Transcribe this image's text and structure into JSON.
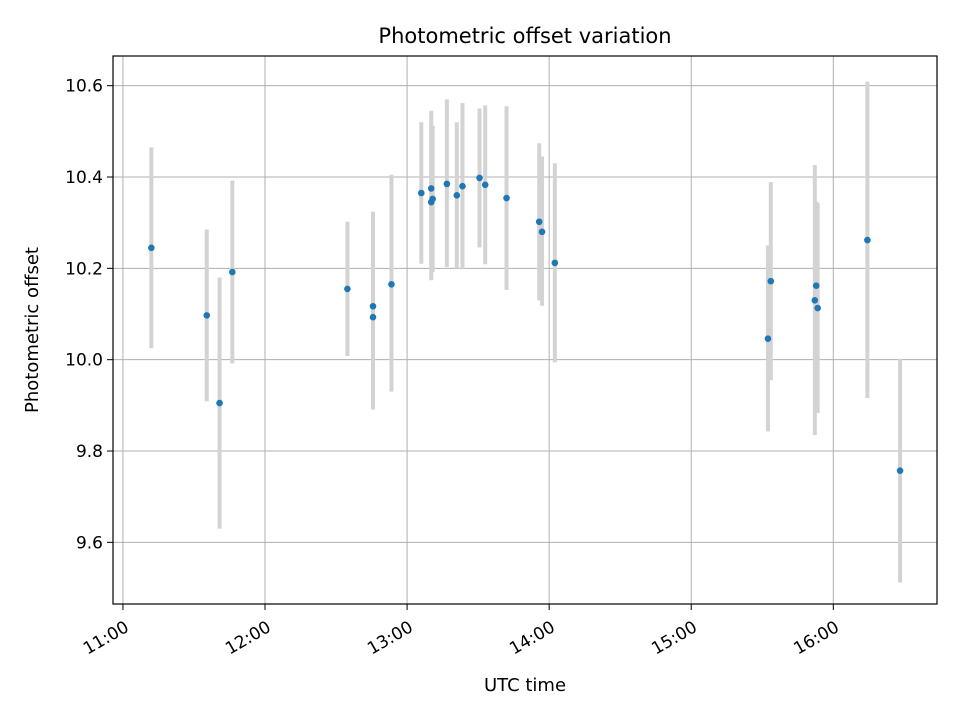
{
  "chart_data": {
    "type": "scatter",
    "title": "Photometric offset variation",
    "xlabel": "UTC time",
    "ylabel": "Photometric offset",
    "x_tick_labels": [
      "11:00",
      "12:00",
      "13:00",
      "14:00",
      "15:00",
      "16:00"
    ],
    "x_ticks_hours": [
      11,
      12,
      13,
      14,
      15,
      16
    ],
    "xlim_hours": [
      10.93,
      16.73
    ],
    "y_tick_labels": [
      "9.6",
      "9.8",
      "10.0",
      "10.2",
      "10.4",
      "10.6"
    ],
    "y_ticks": [
      9.6,
      9.8,
      10.0,
      10.2,
      10.4,
      10.6
    ],
    "ylim": [
      9.465,
      10.665
    ],
    "grid": true,
    "point_color": "#1f77b4",
    "errorbar_color": "#d3d3d3",
    "points": [
      {
        "t": 11.2,
        "y": 10.245,
        "lo": 10.025,
        "hi": 10.465
      },
      {
        "t": 11.59,
        "y": 10.097,
        "lo": 9.909,
        "hi": 10.285
      },
      {
        "t": 11.68,
        "y": 9.905,
        "lo": 9.63,
        "hi": 10.18
      },
      {
        "t": 11.77,
        "y": 10.192,
        "lo": 9.992,
        "hi": 10.392
      },
      {
        "t": 12.58,
        "y": 10.155,
        "lo": 10.008,
        "hi": 10.302
      },
      {
        "t": 12.76,
        "y": 10.093,
        "lo": 9.891,
        "hi": 10.295
      },
      {
        "t": 12.76,
        "y": 10.117,
        "lo": 9.91,
        "hi": 10.324
      },
      {
        "t": 12.89,
        "y": 10.165,
        "lo": 9.93,
        "hi": 10.405
      },
      {
        "t": 13.1,
        "y": 10.365,
        "lo": 10.21,
        "hi": 10.52
      },
      {
        "t": 13.17,
        "y": 10.375,
        "lo": 10.205,
        "hi": 10.545
      },
      {
        "t": 13.17,
        "y": 10.345,
        "lo": 10.174,
        "hi": 10.516
      },
      {
        "t": 13.18,
        "y": 10.352,
        "lo": 10.192,
        "hi": 10.512
      },
      {
        "t": 13.28,
        "y": 10.385,
        "lo": 10.203,
        "hi": 10.57
      },
      {
        "t": 13.35,
        "y": 10.36,
        "lo": 10.2,
        "hi": 10.52
      },
      {
        "t": 13.39,
        "y": 10.38,
        "lo": 10.198,
        "hi": 10.562
      },
      {
        "t": 13.51,
        "y": 10.398,
        "lo": 10.246,
        "hi": 10.55
      },
      {
        "t": 13.55,
        "y": 10.383,
        "lo": 10.209,
        "hi": 10.557
      },
      {
        "t": 13.7,
        "y": 10.354,
        "lo": 10.153,
        "hi": 10.555
      },
      {
        "t": 13.93,
        "y": 10.302,
        "lo": 10.13,
        "hi": 10.474
      },
      {
        "t": 13.95,
        "y": 10.28,
        "lo": 10.118,
        "hi": 10.445
      },
      {
        "t": 14.04,
        "y": 10.212,
        "lo": 9.994,
        "hi": 10.43
      },
      {
        "t": 15.54,
        "y": 10.046,
        "lo": 9.843,
        "hi": 10.25
      },
      {
        "t": 15.56,
        "y": 10.172,
        "lo": 9.955,
        "hi": 10.389
      },
      {
        "t": 15.87,
        "y": 10.13,
        "lo": 9.835,
        "hi": 10.426
      },
      {
        "t": 15.88,
        "y": 10.162,
        "lo": 9.978,
        "hi": 10.346
      },
      {
        "t": 15.89,
        "y": 10.113,
        "lo": 9.883,
        "hi": 10.343
      },
      {
        "t": 16.24,
        "y": 10.262,
        "lo": 9.916,
        "hi": 10.609
      },
      {
        "t": 16.47,
        "y": 9.757,
        "lo": 9.512,
        "hi": 10.002
      }
    ]
  }
}
